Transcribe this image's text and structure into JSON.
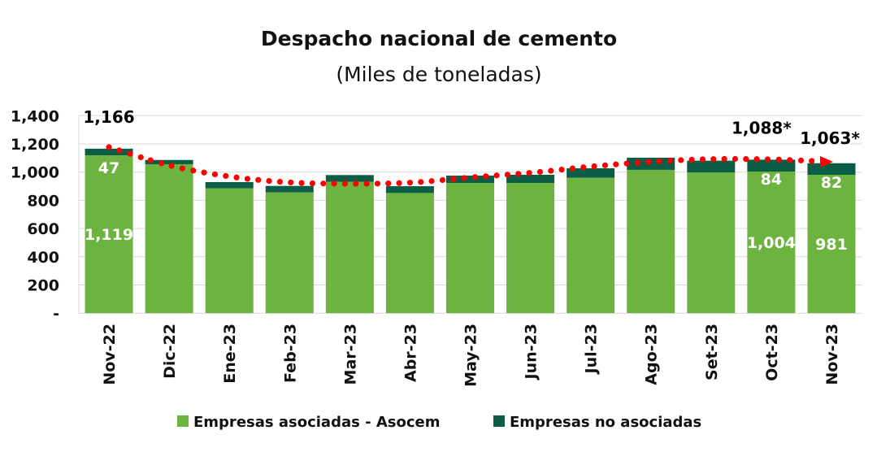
{
  "chart_data": {
    "type": "bar",
    "stacked": true,
    "title": "Despacho nacional de cemento",
    "subtitle": "(Miles de toneladas)",
    "categories": [
      "Nov-22",
      "Dic-22",
      "Ene-23",
      "Feb-23",
      "Mar-23",
      "Abr-23",
      "May-23",
      "Jun-23",
      "Jul-23",
      "Ago-23",
      "Set-23",
      "Oct-23",
      "Nov-23"
    ],
    "series": [
      {
        "name": "Empresas asociadas - Asocem",
        "color": "#6db33f",
        "values": [
          1119,
          1056,
          885,
          856,
          931,
          852,
          923,
          923,
          960,
          1016,
          997,
          1004,
          981
        ]
      },
      {
        "name": "Empresas no asociadas",
        "color": "#0b5d45",
        "values": [
          47,
          30,
          44,
          46,
          48,
          48,
          52,
          58,
          67,
          86,
          84,
          84,
          82
        ]
      }
    ],
    "trendline": {
      "color": "#ff0000",
      "style": "dotted",
      "arrow": true,
      "values": [
        1177,
        1048,
        969,
        927,
        918,
        925,
        962,
        995,
        1039,
        1073,
        1092,
        1090,
        1073
      ]
    },
    "yticks": [
      {
        "value": 0,
        "label": "-"
      },
      {
        "value": 200,
        "label": "200"
      },
      {
        "value": 400,
        "label": "400"
      },
      {
        "value": 600,
        "label": "600"
      },
      {
        "value": 800,
        "label": "800"
      },
      {
        "value": 1000,
        "label": "1,000"
      },
      {
        "value": 1200,
        "label": "1,200"
      },
      {
        "value": 1400,
        "label": "1,400"
      }
    ],
    "ylim": [
      0,
      1400
    ],
    "grid": true,
    "legend_position": "bottom",
    "data_labels": [
      {
        "category": "Nov-22",
        "series": 0,
        "text": "1,119",
        "position": "inside",
        "color": "#ffffff"
      },
      {
        "category": "Nov-22",
        "series": 1,
        "text": "47",
        "position": "inside",
        "color": "#ffffff"
      },
      {
        "category": "Nov-22",
        "series": "total",
        "text": "1,166",
        "position": "above",
        "color": "#000000"
      },
      {
        "category": "Oct-23",
        "series": 0,
        "text": "1,004",
        "position": "inside",
        "color": "#ffffff"
      },
      {
        "category": "Oct-23",
        "series": 1,
        "text": "84",
        "position": "inside",
        "color": "#ffffff"
      },
      {
        "category": "Oct-23",
        "series": "total",
        "text": "1,088*",
        "position": "above",
        "color": "#000000"
      },
      {
        "category": "Nov-23",
        "series": 0,
        "text": "981",
        "position": "inside",
        "color": "#ffffff"
      },
      {
        "category": "Nov-23",
        "series": 1,
        "text": "82",
        "position": "inside",
        "color": "#ffffff"
      },
      {
        "category": "Nov-23",
        "series": "total",
        "text": "1,063*",
        "position": "above",
        "color": "#000000"
      }
    ]
  }
}
